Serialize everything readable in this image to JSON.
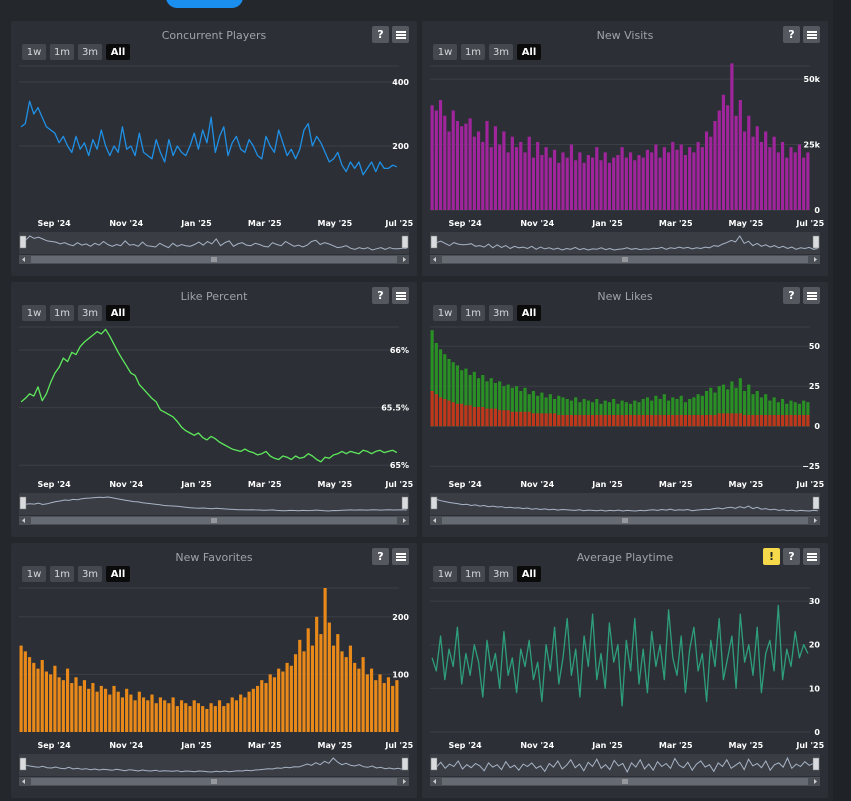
{
  "chart_data": [
    {
      "type": "line",
      "title": "Concurrent Players",
      "color": "#1f8fe5",
      "x_labels": [
        "Sep '24",
        "Nov '24",
        "Jan '25",
        "Mar '25",
        "May '25",
        "Jul '25"
      ],
      "y_ticks": [
        "400",
        "200"
      ],
      "ylim": [
        0,
        450
      ],
      "tick_values": [
        400,
        200
      ],
      "range_buttons": [
        "1w",
        "1m",
        "3m",
        "All"
      ],
      "active_range": "All",
      "series": [
        {
          "values": [
            260,
            270,
            340,
            300,
            320,
            290,
            260,
            250,
            240,
            210,
            230,
            200,
            180,
            230,
            190,
            210,
            170,
            220,
            190,
            250,
            200,
            170,
            200,
            180,
            260,
            190,
            200,
            170,
            240,
            180,
            170,
            160,
            220,
            180,
            150,
            220,
            170,
            200,
            180,
            170,
            200,
            240,
            190,
            250,
            210,
            290,
            180,
            230,
            260,
            170,
            210,
            230,
            190,
            180,
            220,
            200,
            170,
            160,
            230,
            200,
            180,
            250,
            210,
            170,
            190,
            160,
            190,
            250,
            270,
            200,
            230,
            210,
            180,
            150,
            160,
            180,
            140,
            120,
            150,
            130,
            150,
            110,
            130,
            150,
            120,
            150,
            130,
            130,
            140,
            135
          ]
        }
      ]
    },
    {
      "type": "bar",
      "title": "New Visits",
      "color": "#a0249c",
      "x_labels": [
        "Sep '24",
        "Nov '24",
        "Jan '25",
        "Mar '25",
        "May '25",
        "Jul '25"
      ],
      "y_ticks": [
        "50k",
        "25k",
        "0"
      ],
      "ylim": [
        0,
        55000
      ],
      "tick_values": [
        50000,
        25000,
        0
      ],
      "range_buttons": [
        "1w",
        "1m",
        "3m",
        "All"
      ],
      "active_range": "All",
      "series": [
        {
          "values": [
            40000,
            38000,
            42000,
            36000,
            30000,
            38000,
            34000,
            32000,
            33000,
            35000,
            28000,
            30000,
            26000,
            34000,
            24000,
            32000,
            25000,
            30000,
            22000,
            28000,
            24000,
            26000,
            22000,
            28000,
            20000,
            26000,
            21000,
            24000,
            20000,
            23000,
            18000,
            22000,
            20000,
            25000,
            19000,
            22000,
            18000,
            21000,
            20000,
            24000,
            19000,
            22000,
            18000,
            20000,
            21000,
            24000,
            20000,
            22000,
            19000,
            21000,
            20000,
            23000,
            22000,
            25000,
            20000,
            24000,
            22000,
            26000,
            23000,
            25000,
            21000,
            24000,
            22000,
            26000,
            24000,
            30000,
            28000,
            34000,
            38000,
            44000,
            40000,
            56000,
            36000,
            42000,
            30000,
            36000,
            28000,
            32000,
            26000,
            30000,
            24000,
            28000,
            22000,
            26000,
            20000,
            24000,
            22000,
            25000,
            20000,
            22000
          ]
        }
      ]
    },
    {
      "type": "line",
      "title": "Like Percent",
      "color": "#5ee85b",
      "x_labels": [
        "Sep '24",
        "Nov '24",
        "Jan '25",
        "Mar '25",
        "May '25",
        "Jul '25"
      ],
      "y_ticks": [
        "66%",
        "65.5%",
        "65%"
      ],
      "ylim": [
        64.95,
        66.2
      ],
      "tick_values": [
        66,
        65.5,
        65
      ],
      "range_buttons": [
        "1w",
        "1m",
        "3m",
        "All"
      ],
      "active_range": "All",
      "series": [
        {
          "values": [
            65.55,
            65.58,
            65.62,
            65.6,
            65.68,
            65.56,
            65.62,
            65.72,
            65.8,
            65.85,
            65.93,
            65.9,
            65.98,
            65.96,
            66.03,
            66.07,
            66.1,
            66.13,
            66.16,
            66.14,
            66.18,
            66.12,
            66.05,
            65.98,
            65.92,
            65.86,
            65.8,
            65.78,
            65.7,
            65.66,
            65.62,
            65.58,
            65.55,
            65.48,
            65.46,
            65.44,
            65.42,
            65.38,
            65.33,
            65.3,
            65.28,
            65.26,
            65.28,
            65.24,
            65.22,
            65.25,
            65.23,
            65.2,
            65.18,
            65.16,
            65.14,
            65.13,
            65.12,
            65.14,
            65.12,
            65.11,
            65.09,
            65.1,
            65.12,
            65.08,
            65.06,
            65.05,
            65.08,
            65.07,
            65.05,
            65.08,
            65.06,
            65.07,
            65.1,
            65.08,
            65.05,
            65.03,
            65.07,
            65.06,
            65.09,
            65.1,
            65.12,
            65.1,
            65.12,
            65.11,
            65.1,
            65.13,
            65.12,
            65.1,
            65.12,
            65.13,
            65.11,
            65.12,
            65.13,
            65.11
          ]
        }
      ]
    },
    {
      "type": "bar",
      "title": "New Likes",
      "colors": [
        "#2a8f25",
        "#c0361c"
      ],
      "x_labels": [
        "Sep '24",
        "Nov '24",
        "Jan '25",
        "Mar '25",
        "May '25",
        "Jul '25"
      ],
      "y_ticks": [
        "50",
        "25",
        "0",
        "−25"
      ],
      "ylim": [
        -28,
        62
      ],
      "tick_values": [
        50,
        25,
        0,
        -25
      ],
      "range_buttons": [
        "1w",
        "1m",
        "3m",
        "All"
      ],
      "active_range": "All",
      "series": [
        {
          "values": [
            60,
            52,
            48,
            45,
            42,
            40,
            38,
            35,
            36,
            32,
            34,
            30,
            32,
            28,
            30,
            27,
            28,
            25,
            26,
            24,
            25,
            22,
            24,
            20,
            22,
            19,
            21,
            18,
            20,
            17,
            19,
            18,
            17,
            16,
            18,
            15,
            17,
            16,
            15,
            17,
            14,
            16,
            15,
            17,
            14,
            16,
            15,
            14,
            16,
            15,
            17,
            18,
            16,
            19,
            17,
            20,
            16,
            18,
            17,
            19,
            15,
            17,
            18,
            20,
            19,
            22,
            24,
            21,
            25,
            26,
            23,
            28,
            24,
            30,
            22,
            26,
            20,
            22,
            18,
            20,
            16,
            18,
            15,
            17,
            14,
            16,
            15,
            14,
            16,
            15
          ]
        },
        {
          "values": [
            22,
            20,
            18,
            17,
            16,
            15,
            14,
            14,
            13,
            13,
            12,
            12,
            12,
            11,
            11,
            11,
            10,
            10,
            10,
            9,
            9,
            9,
            9,
            9,
            8,
            8,
            8,
            8,
            8,
            8,
            7,
            7,
            7,
            7,
            7,
            7,
            7,
            7,
            7,
            7,
            7,
            7,
            7,
            7,
            7,
            7,
            7,
            7,
            7,
            7,
            7,
            7,
            7,
            7,
            7,
            7,
            7,
            7,
            7,
            7,
            7,
            7,
            7,
            7,
            7,
            7,
            7,
            7,
            8,
            8,
            8,
            8,
            8,
            8,
            7,
            7,
            7,
            7,
            7,
            7,
            7,
            7,
            7,
            7,
            7,
            7,
            7,
            7,
            7,
            7
          ]
        }
      ]
    },
    {
      "type": "bar",
      "title": "New Favorites",
      "color": "#e8891a",
      "x_labels": [
        "Sep '24",
        "Nov '24",
        "Jan '25",
        "Mar '25",
        "May '25",
        "Jul '25"
      ],
      "y_ticks": [
        "200",
        "100"
      ],
      "ylim": [
        0,
        250
      ],
      "tick_values": [
        200,
        100
      ],
      "range_buttons": [
        "1w",
        "1m",
        "3m",
        "All"
      ],
      "active_range": "All",
      "series": [
        {
          "values": [
            150,
            140,
            130,
            120,
            110,
            125,
            105,
            100,
            115,
            95,
            90,
            110,
            85,
            95,
            80,
            90,
            75,
            85,
            70,
            80,
            75,
            65,
            80,
            70,
            60,
            75,
            65,
            55,
            70,
            60,
            55,
            65,
            50,
            60,
            55,
            50,
            60,
            45,
            55,
            50,
            45,
            55,
            50,
            45,
            40,
            50,
            45,
            55,
            45,
            50,
            60,
            55,
            65,
            60,
            70,
            75,
            80,
            90,
            85,
            100,
            95,
            110,
            105,
            120,
            115,
            135,
            160,
            140,
            180,
            150,
            200,
            170,
            250,
            190,
            150,
            170,
            140,
            130,
            150,
            120,
            110,
            130,
            100,
            110,
            90,
            100,
            85,
            95,
            80,
            90
          ]
        }
      ]
    },
    {
      "type": "line",
      "title": "Average Playtime",
      "color": "#2e9e7b",
      "x_labels": [
        "Sep '24",
        "Nov '24",
        "Jan '25",
        "Mar '25",
        "May '25",
        "Jul '25"
      ],
      "y_ticks": [
        "30",
        "20",
        "10",
        "0"
      ],
      "ylim": [
        0,
        33
      ],
      "tick_values": [
        30,
        20,
        10,
        0
      ],
      "range_buttons": [
        "1w",
        "1m",
        "3m",
        "All"
      ],
      "active_range": "All",
      "series": [
        {
          "values": [
            17,
            14,
            22,
            12,
            19,
            15,
            24,
            11,
            18,
            13,
            20,
            16,
            8,
            21,
            14,
            18,
            10,
            23,
            13,
            17,
            9,
            19,
            15,
            21,
            12,
            16,
            7,
            20,
            14,
            24,
            11,
            17,
            26,
            13,
            19,
            8,
            22,
            15,
            27,
            12,
            18,
            10,
            25,
            16,
            20,
            6,
            21,
            14,
            26,
            11,
            19,
            9,
            23,
            15,
            20,
            12,
            28,
            17,
            13,
            22,
            9,
            19,
            24,
            14,
            18,
            7,
            21,
            15,
            26,
            12,
            17,
            22,
            10,
            27,
            16,
            20,
            13,
            24,
            9,
            18,
            21,
            14,
            29,
            12,
            19,
            15,
            23,
            17,
            20,
            18
          ]
        }
      ]
    }
  ]
}
